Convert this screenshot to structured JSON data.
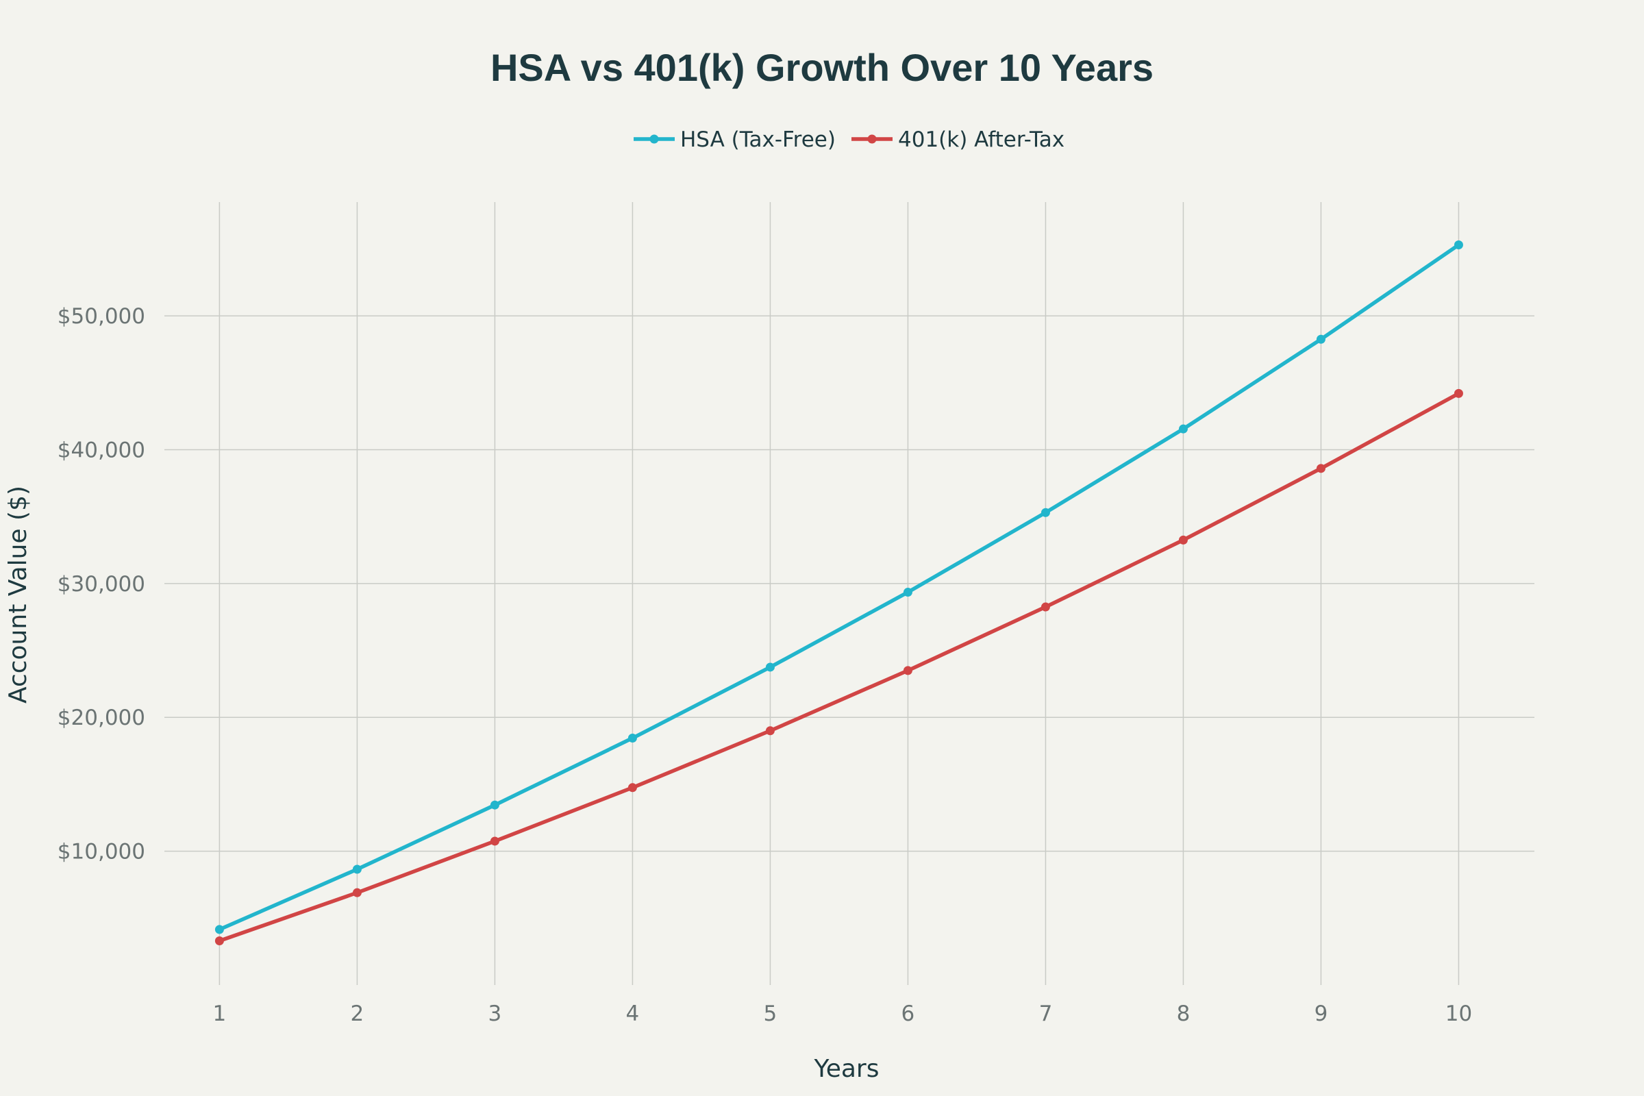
{
  "chart_data": {
    "type": "line",
    "title": "HSA vs 401(k) Growth Over 10 Years",
    "xlabel": "Years",
    "ylabel": "Account Value ($)",
    "x": [
      1,
      2,
      3,
      4,
      5,
      6,
      7,
      8,
      9,
      10
    ],
    "x_ticks": [
      "1",
      "2",
      "3",
      "4",
      "5",
      "6",
      "7",
      "8",
      "9",
      "10"
    ],
    "y_ticks": [
      10000,
      20000,
      30000,
      40000,
      50000
    ],
    "y_tick_labels": [
      "$10,000",
      "$20,000",
      "$30,000",
      "$40,000",
      "$50,000"
    ],
    "ylim": [
      0,
      58500
    ],
    "xlim": [
      0.6,
      10.55
    ],
    "grid": true,
    "legend_position": "top-center",
    "series": [
      {
        "name": "HSA (Tax-Free)",
        "color": "#22b5cc",
        "values": [
          4150,
          8650,
          13450,
          18450,
          23750,
          29350,
          35300,
          41550,
          48250,
          55300
        ]
      },
      {
        "name": "401(k) After-Tax",
        "color": "#d14545",
        "values": [
          3300,
          6900,
          10750,
          14750,
          19000,
          23500,
          28250,
          33250,
          38600,
          44200
        ]
      }
    ]
  }
}
